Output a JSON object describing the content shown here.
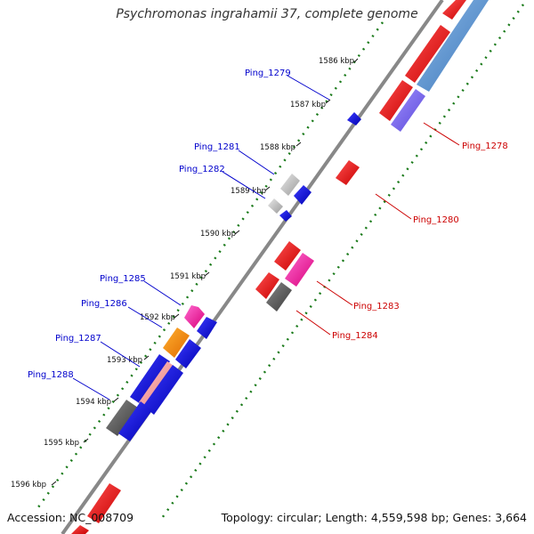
{
  "title": "Psychromonas ingrahamii 37, complete genome",
  "footer": {
    "accession": "Accession: NC_008709",
    "summary": "Topology: circular; Length: 4,559,598 bp; Genes: 3,664"
  },
  "colors": {
    "backbone": "#888888",
    "label_left": "#0000cc",
    "label_right": "#cc0000",
    "tick_major": "#2a8a2a",
    "tick_minor": "#1a7a1a"
  },
  "kbp_labels": [
    {
      "id": "1586",
      "text": "1586 kbp"
    },
    {
      "id": "1587",
      "text": "1587 kbp"
    },
    {
      "id": "1588",
      "text": "1588 kbp"
    },
    {
      "id": "1589",
      "text": "1589 kbp"
    },
    {
      "id": "1590",
      "text": "1590 kbp"
    },
    {
      "id": "1591",
      "text": "1591 kbp"
    },
    {
      "id": "1592",
      "text": "1592 kbp"
    },
    {
      "id": "1593",
      "text": "1593 kbp"
    },
    {
      "id": "1594",
      "text": "1594 kbp"
    },
    {
      "id": "1595",
      "text": "1595 kbp"
    },
    {
      "id": "1596",
      "text": "1596 kbp"
    }
  ],
  "gene_labels_left": [
    {
      "id": "ping-1279",
      "text": "Ping_1279"
    },
    {
      "id": "ping-1281",
      "text": "Ping_1281"
    },
    {
      "id": "ping-1282",
      "text": "Ping_1282"
    },
    {
      "id": "ping-1285",
      "text": "Ping_1285"
    },
    {
      "id": "ping-1286",
      "text": "Ping_1286"
    },
    {
      "id": "ping-1287",
      "text": "Ping_1287"
    },
    {
      "id": "ping-1288",
      "text": "Ping_1288"
    }
  ],
  "gene_labels_right": [
    {
      "id": "ping-1278",
      "text": "Ping_1278"
    },
    {
      "id": "ping-1280",
      "text": "Ping_1280"
    },
    {
      "id": "ping-1283",
      "text": "Ping_1283"
    },
    {
      "id": "ping-1284",
      "text": "Ping_1284"
    }
  ]
}
